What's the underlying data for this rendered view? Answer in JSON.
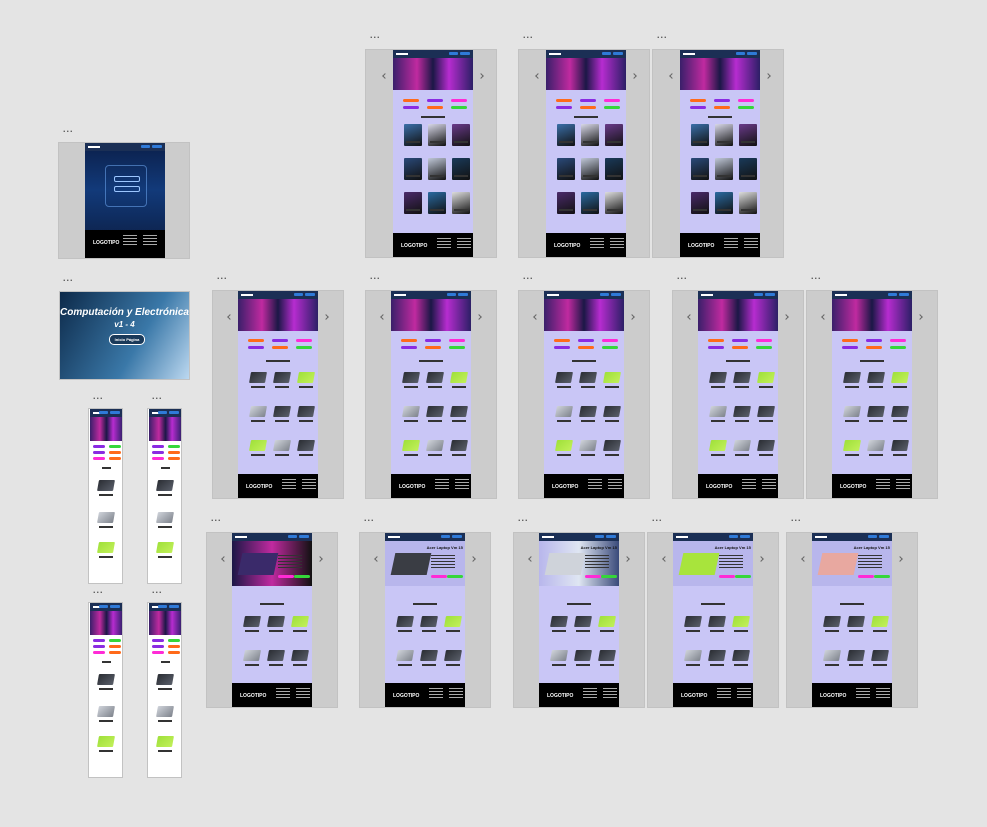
{
  "canvas": {
    "background": "#e4e4e4",
    "frame_menu_label": "..."
  },
  "colors": {
    "navbar": "#1b2f55",
    "page_background": "#c9c6f6",
    "footer": "#000000",
    "pill_orange": "#ff6a1a",
    "pill_purple": "#8a2be2",
    "pill_magenta": "#ff2bd6",
    "pill_green": "#35d63a",
    "laptop_green": "#a8e43c"
  },
  "cover": {
    "title": "Computación y Electrónica",
    "subtitle": "v1 - 4",
    "button_label": "Inicio Página"
  },
  "footer": {
    "logo": "LOGOTIPO"
  },
  "product_page": {
    "heading": "Acer Laptop Vm 15"
  }
}
